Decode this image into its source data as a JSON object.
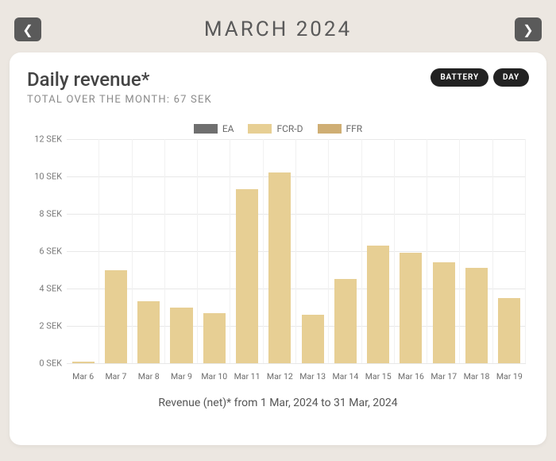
{
  "header": {
    "month_title": "MARCH 2024"
  },
  "card": {
    "title": "Daily revenue*",
    "subtitle": "TOTAL OVER THE MONTH: 67 SEK",
    "pills": {
      "battery": "BATTERY",
      "day": "DAY"
    },
    "caption": "Revenue (net)* from 1 Mar, 2024 to 31 Mar, 2024"
  },
  "legend": {
    "items": [
      {
        "label": "EA",
        "color": "#6f6f6f"
      },
      {
        "label": "FCR-D",
        "color": "#e7cf94"
      },
      {
        "label": "FFR",
        "color": "#cfae74"
      }
    ]
  },
  "chart": {
    "type": "bar",
    "y_unit": "SEK",
    "ylim": [
      0,
      12
    ],
    "ytick_step": 2,
    "bar_color": "#e7cf94",
    "grid_color": "#e8e8e8",
    "background_color": "#ffffff",
    "bar_width": 0.68,
    "label_fontsize": 11,
    "categories": [
      "Mar 6",
      "Mar 7",
      "Mar 8",
      "Mar 9",
      "Mar 10",
      "Mar 11",
      "Mar 12",
      "Mar 13",
      "Mar 14",
      "Mar 15",
      "Mar 16",
      "Mar 17",
      "Mar 18",
      "Mar 19"
    ],
    "values": [
      0.1,
      5.0,
      3.3,
      3.0,
      2.7,
      9.3,
      10.2,
      2.6,
      4.5,
      6.3,
      5.9,
      5.4,
      5.1,
      3.5
    ]
  },
  "colors": {
    "page_bg": "#ece7e1",
    "card_bg": "#ffffff",
    "nav_btn_bg": "#5a5a5a",
    "pill_bg": "#222222",
    "text_primary": "#444444",
    "text_muted": "#8a8a8a"
  }
}
